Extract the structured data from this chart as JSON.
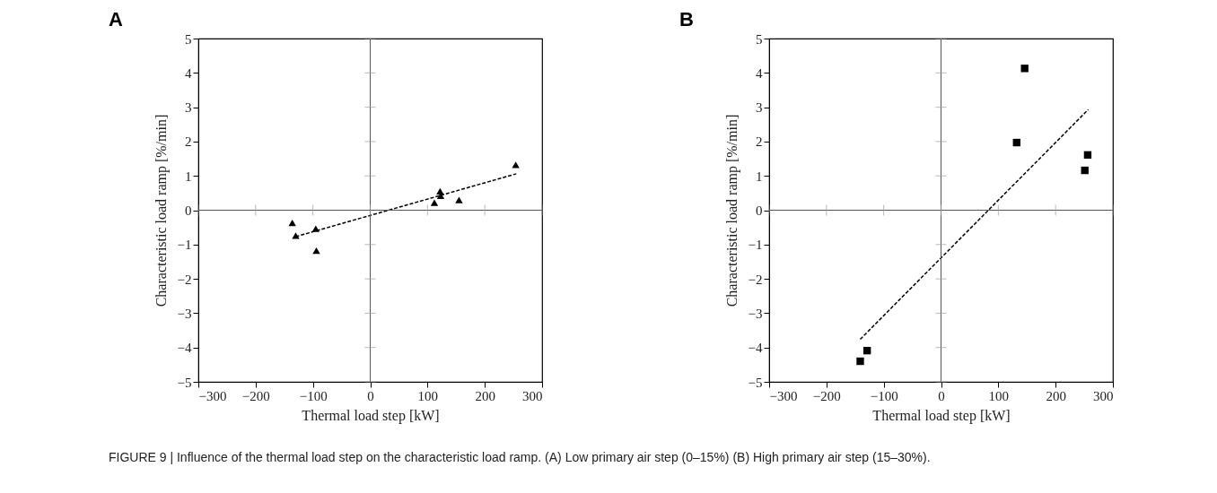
{
  "chart_data": [
    {
      "type": "scatter",
      "title": "A",
      "xlabel": "Thermal load step [kW]",
      "ylabel": "Characteristic load ramp [%/min]",
      "xlim": [
        -300,
        300
      ],
      "xticks": [
        -300,
        -200,
        -100,
        0,
        100,
        200,
        300
      ],
      "ylim": [
        -5,
        5
      ],
      "yticks": [
        -5,
        -4,
        -3,
        -2,
        -1,
        0,
        1,
        2,
        3,
        4,
        5
      ],
      "grid": false,
      "ref_lines": [
        {
          "axis": "x",
          "value": 0
        },
        {
          "axis": "y",
          "value": 0
        }
      ],
      "series": [
        {
          "color": "#000000",
          "marker": "triangle",
          "x": [
            -136,
            -130,
            -95,
            -94,
            112,
            122,
            123,
            155,
            254
          ],
          "values": [
            -0.37,
            -0.74,
            -0.54,
            -1.18,
            0.22,
            0.55,
            0.42,
            0.3,
            1.32
          ]
        },
        {
          "type": "line",
          "color": "#000000",
          "line_style": "dashed",
          "marker": "none",
          "x": [
            -130,
            255
          ],
          "values": [
            -0.77,
            1.06
          ]
        }
      ],
      "annotations": [
        "FIGURE 9 | Influence of the thermal load step on the characteristic load ramp. (A) Low primary air step (0–15%) (B) High primary air step (15–30%)."
      ]
    },
    {
      "type": "scatter",
      "title": "B",
      "xlabel": "Thermal load step [kW]",
      "ylabel": "Characteristic load ramp [%/min]",
      "xlim": [
        -300,
        300
      ],
      "xticks": [
        -300,
        -200,
        -100,
        0,
        100,
        200,
        300
      ],
      "ylim": [
        -5,
        5
      ],
      "yticks": [
        -5,
        -4,
        -3,
        -2,
        -1,
        0,
        1,
        2,
        3,
        4,
        5
      ],
      "grid": false,
      "ref_lines": [
        {
          "axis": "x",
          "value": 0
        },
        {
          "axis": "y",
          "value": 0
        }
      ],
      "series": [
        {
          "color": "#000000",
          "marker": "square",
          "x": [
            146,
            132,
            256,
            251,
            -129,
            -141
          ],
          "values": [
            4.13,
            1.97,
            1.61,
            1.16,
            -4.09,
            -4.4
          ]
        },
        {
          "type": "line",
          "color": "#000000",
          "line_style": "dashed",
          "marker": "none",
          "x": [
            -141,
            257
          ],
          "values": [
            -3.76,
            2.93
          ]
        }
      ]
    }
  ]
}
